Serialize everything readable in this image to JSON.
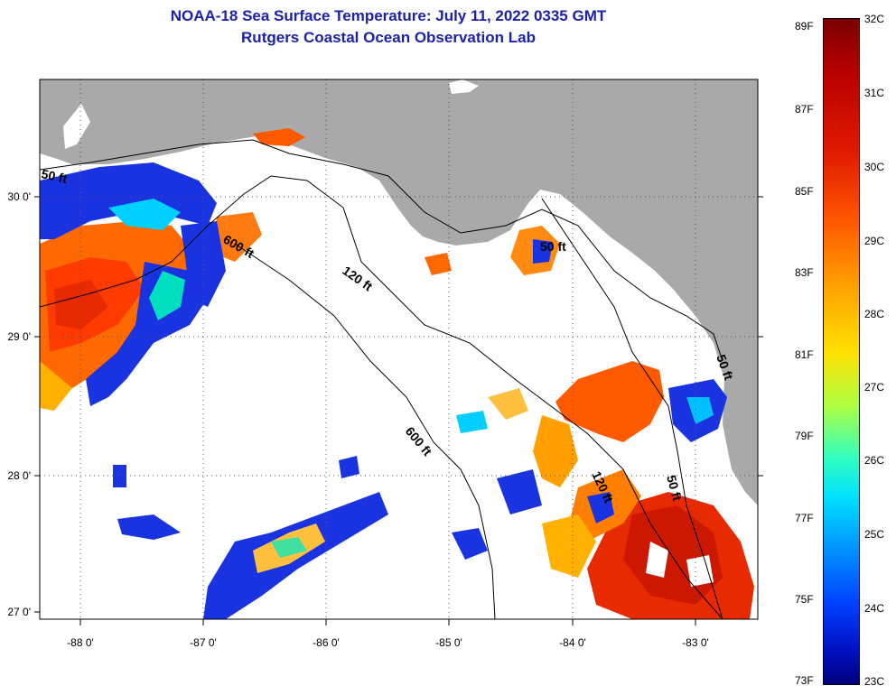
{
  "title_line1": "NOAA-18 Sea Surface Temperature:  July 11, 2022 0335 GMT",
  "title_line2": "Rutgers Coastal Ocean Observation Lab",
  "lat_ticks": [
    "30 0'",
    "29 0'",
    "28 0'",
    "27 0'"
  ],
  "lon_ticks": [
    "-88 0'",
    "-87 0'",
    "-86 0'",
    "-85 0'",
    "-84 0'",
    "-83 0'"
  ],
  "contours": [
    "50 ft",
    "600 ft",
    "120 ft",
    "600 ft",
    "50 ft",
    "120 ft",
    "50 ft",
    "50 ft"
  ],
  "colorbar": {
    "f_labels": [
      "89F",
      "87F",
      "85F",
      "83F",
      "81F",
      "79F",
      "77F",
      "75F",
      "73F"
    ],
    "c_labels": [
      "32C",
      "31C",
      "30C",
      "29C",
      "28C",
      "27C",
      "26C",
      "25C",
      "24C",
      "23C"
    ]
  },
  "colors": {
    "land": "#a9a9a9",
    "title": "#1a22a8"
  }
}
